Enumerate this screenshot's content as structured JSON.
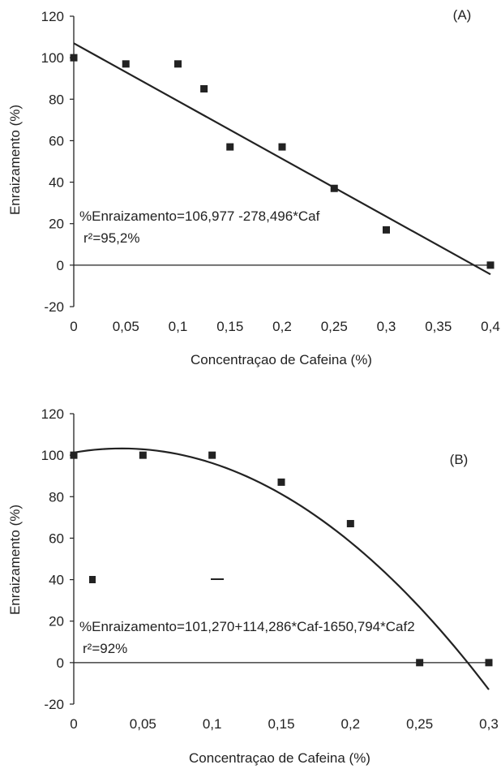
{
  "chart_data": [
    {
      "type": "scatter",
      "panel_label": "(A)",
      "xlabel": "Concentraçao de Cafeina (%)",
      "ylabel": "Enraizamento (%)",
      "xlim": [
        0,
        0.4
      ],
      "ylim": [
        -20,
        120
      ],
      "x_ticks": [
        "0",
        "0,05",
        "0,1",
        "0,15",
        "0,2",
        "0,25",
        "0,3",
        "0,35",
        "0,4"
      ],
      "y_ticks": [
        "-20",
        "0",
        "20",
        "40",
        "60",
        "80",
        "100",
        "120"
      ],
      "points": [
        {
          "x": 0,
          "y": 100
        },
        {
          "x": 0.05,
          "y": 97
        },
        {
          "x": 0.1,
          "y": 97
        },
        {
          "x": 0.125,
          "y": 85
        },
        {
          "x": 0.15,
          "y": 57
        },
        {
          "x": 0.2,
          "y": 57
        },
        {
          "x": 0.25,
          "y": 37
        },
        {
          "x": 0.3,
          "y": 17
        },
        {
          "x": 0.4,
          "y": 0
        }
      ],
      "fit": {
        "type": "linear",
        "intercept": 106.977,
        "coefficients": [
          -278.496
        ]
      },
      "equation": "%Enraizamento=106,977 -278,496*Caf",
      "r2": "r²=95,2%",
      "zero_line": true
    },
    {
      "type": "scatter",
      "panel_label": "(B)",
      "xlabel": "Concentraçao de Cafeina (%)",
      "ylabel": "Enraizamento (%)",
      "xlim": [
        0,
        0.3
      ],
      "ylim": [
        -20,
        120
      ],
      "x_ticks": [
        "0",
        "0,05",
        "0,1",
        "0,15",
        "0,2",
        "0,25",
        "0,3"
      ],
      "y_ticks": [
        "-20",
        "0",
        "20",
        "40",
        "60",
        "80",
        "100",
        "120"
      ],
      "points": [
        {
          "x": 0,
          "y": 100
        },
        {
          "x": 0.05,
          "y": 100
        },
        {
          "x": 0.1,
          "y": 100
        },
        {
          "x": 0.15,
          "y": 87
        },
        {
          "x": 0.2,
          "y": 67
        },
        {
          "x": 0.25,
          "y": 0
        },
        {
          "x": 0.3,
          "y": 0
        }
      ],
      "fit": {
        "type": "quadratic",
        "intercept": 101.27,
        "coefficients": [
          114.286,
          -1650.794
        ]
      },
      "equation": "%Enraizamento=101,270+114,286*Caf-1650,794*Caf2",
      "r2": "r²=92%",
      "zero_line": true
    }
  ]
}
